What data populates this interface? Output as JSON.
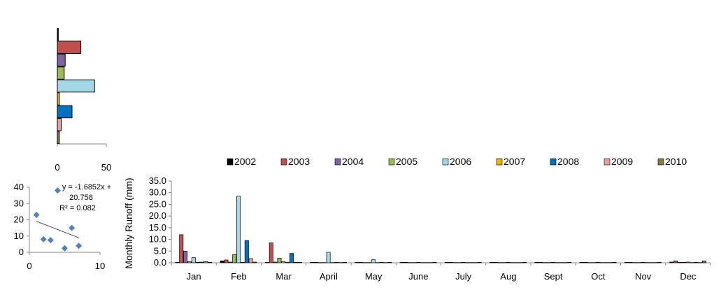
{
  "chart_data": [
    {
      "type": "bar",
      "orientation": "horizontal",
      "categories": [
        "2002",
        "2003",
        "2004",
        "2005",
        "2006",
        "2007",
        "2008",
        "2009",
        "2010"
      ],
      "values": [
        1,
        24,
        8,
        7,
        38,
        2,
        15,
        4,
        2
      ],
      "xlim": [
        0,
        50
      ],
      "xticks": [
        "0",
        "50"
      ],
      "colors": [
        "#000000",
        "#c0504d",
        "#8064a2",
        "#9bbb59",
        "#a5d8e6",
        "#f0b400",
        "#0070c0",
        "#e6a0a0",
        "#8c7a4a"
      ]
    },
    {
      "type": "scatter",
      "points": [
        [
          1,
          23
        ],
        [
          2,
          8
        ],
        [
          3,
          7.5
        ],
        [
          4,
          38
        ],
        [
          5,
          2.5
        ],
        [
          6,
          15
        ],
        [
          7,
          4
        ]
      ],
      "xlim": [
        0,
        10
      ],
      "ylim": [
        0,
        40
      ],
      "xticks": [
        "0",
        "10"
      ],
      "yticks": [
        "0",
        "10",
        "20",
        "30",
        "40"
      ],
      "trendline": {
        "slope": -1.6852,
        "intercept": 20.758
      },
      "annotation_lines": [
        "y = -1.6852x +",
        "20.758",
        "R² = 0.082"
      ],
      "marker_color": "#4f81bd"
    },
    {
      "type": "bar",
      "ylabel": "Monthly  Runoff (mm)",
      "ylim": [
        0,
        35
      ],
      "yticks": [
        "0.0",
        "5.0",
        "10.0",
        "15.0",
        "20.0",
        "25.0",
        "30.0",
        "35.0"
      ],
      "categories": [
        "Jan",
        "Feb",
        "Mar",
        "April",
        "May",
        "June",
        "July",
        "Aug",
        "Sept",
        "Oct",
        "Nov",
        "Dec"
      ],
      "legend_position": "top",
      "series": [
        {
          "name": "2002",
          "color": "#000000",
          "values": [
            0.2,
            0.8,
            0.2,
            0.2,
            0.2,
            0.2,
            0.2,
            0.2,
            0.2,
            0.2,
            0.2,
            0.3
          ]
        },
        {
          "name": "2003",
          "color": "#c0504d",
          "values": [
            12.0,
            1.2,
            8.5,
            0.2,
            0.2,
            0.2,
            0.2,
            0.2,
            0.2,
            0.2,
            0.2,
            0.8
          ]
        },
        {
          "name": "2004",
          "color": "#8064a2",
          "values": [
            5.0,
            0.3,
            0.3,
            0.1,
            0.1,
            0.1,
            0.1,
            0.1,
            0.1,
            0.1,
            0.1,
            0.2
          ]
        },
        {
          "name": "2005",
          "color": "#9bbb59",
          "values": [
            0.5,
            3.5,
            2.0,
            0.1,
            0.1,
            0.1,
            0.1,
            0.1,
            0.1,
            0.1,
            0.1,
            0.2
          ]
        },
        {
          "name": "2006",
          "color": "#a5d8e6",
          "values": [
            2.2,
            28.5,
            0.5,
            4.5,
            1.3,
            0.2,
            0.2,
            0.2,
            0.2,
            0.2,
            0.2,
            0.3
          ]
        },
        {
          "name": "2007",
          "color": "#f0b400",
          "values": [
            0.2,
            0.2,
            0.2,
            0.1,
            0.1,
            0.1,
            0.1,
            0.1,
            0.1,
            0.1,
            0.1,
            0.1
          ]
        },
        {
          "name": "2008",
          "color": "#0070c0",
          "values": [
            0.3,
            9.5,
            4.0,
            0.2,
            0.2,
            0.1,
            0.1,
            0.1,
            0.1,
            0.1,
            0.1,
            0.2
          ]
        },
        {
          "name": "2009",
          "color": "#e6a0a0",
          "values": [
            0.5,
            1.8,
            0.2,
            0.1,
            0.1,
            0.1,
            0.1,
            0.1,
            0.1,
            0.1,
            0.1,
            0.1
          ]
        },
        {
          "name": "2010",
          "color": "#8c7a4a",
          "values": [
            0.2,
            0.3,
            0.2,
            0.2,
            0.2,
            0.2,
            0.2,
            0.2,
            0.2,
            0.2,
            0.2,
            0.8
          ]
        }
      ]
    }
  ]
}
